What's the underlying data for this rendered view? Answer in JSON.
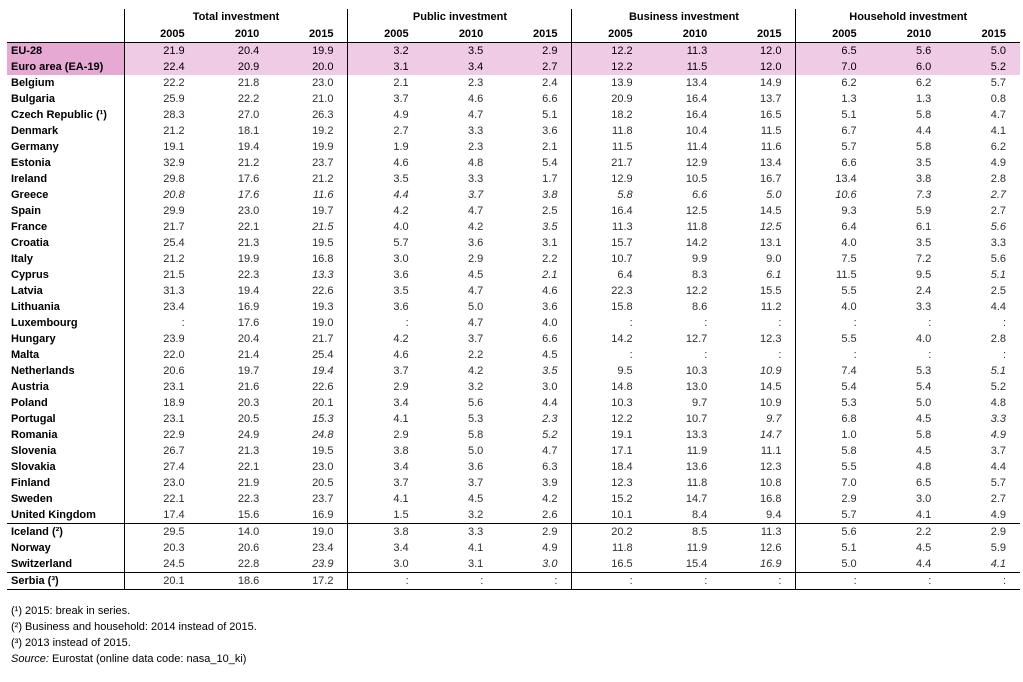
{
  "chart_data": {
    "type": "table",
    "groups": [
      "Total investment",
      "Public investment",
      "Business investment",
      "Household investment"
    ],
    "years": [
      "2005",
      "2010",
      "2015"
    ],
    "rows": [
      {
        "name": "EU-28",
        "values": [
          "21.9",
          "20.4",
          "19.9",
          "3.2",
          "3.5",
          "2.9",
          "12.2",
          "11.3",
          "12.0",
          "6.5",
          "5.6",
          "5.0"
        ]
      },
      {
        "name": "Euro area (EA-19)",
        "values": [
          "22.4",
          "20.9",
          "20.0",
          "3.1",
          "3.4",
          "2.7",
          "12.2",
          "11.5",
          "12.0",
          "7.0",
          "6.0",
          "5.2"
        ]
      },
      {
        "name": "Belgium",
        "values": [
          "22.2",
          "21.8",
          "23.0",
          "2.1",
          "2.3",
          "2.4",
          "13.9",
          "13.4",
          "14.9",
          "6.2",
          "6.2",
          "5.7"
        ]
      },
      {
        "name": "Bulgaria",
        "values": [
          "25.9",
          "22.2",
          "21.0",
          "3.7",
          "4.6",
          "6.6",
          "20.9",
          "16.4",
          "13.7",
          "1.3",
          "1.3",
          "0.8"
        ]
      },
      {
        "name": "Czech Republic (¹)",
        "values": [
          "28.3",
          "27.0",
          "26.3",
          "4.9",
          "4.7",
          "5.1",
          "18.2",
          "16.4",
          "16.5",
          "5.1",
          "5.8",
          "4.7"
        ]
      },
      {
        "name": "Denmark",
        "values": [
          "21.2",
          "18.1",
          "19.2",
          "2.7",
          "3.3",
          "3.6",
          "11.8",
          "10.4",
          "11.5",
          "6.7",
          "4.4",
          "4.1"
        ]
      },
      {
        "name": "Germany",
        "values": [
          "19.1",
          "19.4",
          "19.9",
          "1.9",
          "2.3",
          "2.1",
          "11.5",
          "11.4",
          "11.6",
          "5.7",
          "5.8",
          "6.2"
        ]
      },
      {
        "name": "Estonia",
        "values": [
          "32.9",
          "21.2",
          "23.7",
          "4.6",
          "4.8",
          "5.4",
          "21.7",
          "12.9",
          "13.4",
          "6.6",
          "3.5",
          "4.9"
        ]
      },
      {
        "name": "Ireland",
        "values": [
          "29.8",
          "17.6",
          "21.2",
          "3.5",
          "3.3",
          "1.7",
          "12.9",
          "10.5",
          "16.7",
          "13.4",
          "3.8",
          "2.8"
        ]
      },
      {
        "name": "Greece",
        "values": [
          "20.8",
          "17.6",
          "11.6",
          "4.4",
          "3.7",
          "3.8",
          "5.8",
          "6.6",
          "5.0",
          "10.6",
          "7.3",
          "2.7"
        ],
        "italic": [
          0,
          1,
          2,
          3,
          4,
          5,
          6,
          7,
          8,
          9,
          10,
          11
        ]
      },
      {
        "name": "Spain",
        "values": [
          "29.9",
          "23.0",
          "19.7",
          "4.2",
          "4.7",
          "2.5",
          "16.4",
          "12.5",
          "14.5",
          "9.3",
          "5.9",
          "2.7"
        ]
      },
      {
        "name": "France",
        "values": [
          "21.7",
          "22.1",
          "21.5",
          "4.0",
          "4.2",
          "3.5",
          "11.3",
          "11.8",
          "12.5",
          "6.4",
          "6.1",
          "5.6"
        ],
        "italic": [
          2,
          5,
          8,
          11
        ]
      },
      {
        "name": "Croatia",
        "values": [
          "25.4",
          "21.3",
          "19.5",
          "5.7",
          "3.6",
          "3.1",
          "15.7",
          "14.2",
          "13.1",
          "4.0",
          "3.5",
          "3.3"
        ]
      },
      {
        "name": "Italy",
        "values": [
          "21.2",
          "19.9",
          "16.8",
          "3.0",
          "2.9",
          "2.2",
          "10.7",
          "9.9",
          "9.0",
          "7.5",
          "7.2",
          "5.6"
        ]
      },
      {
        "name": "Cyprus",
        "values": [
          "21.5",
          "22.3",
          "13.3",
          "3.6",
          "4.5",
          "2.1",
          "6.4",
          "8.3",
          "6.1",
          "11.5",
          "9.5",
          "5.1"
        ],
        "italic": [
          2,
          5,
          8,
          11
        ]
      },
      {
        "name": "Latvia",
        "values": [
          "31.3",
          "19.4",
          "22.6",
          "3.5",
          "4.7",
          "4.6",
          "22.3",
          "12.2",
          "15.5",
          "5.5",
          "2.4",
          "2.5"
        ]
      },
      {
        "name": "Lithuania",
        "values": [
          "23.4",
          "16.9",
          "19.3",
          "3.6",
          "5.0",
          "3.6",
          "15.8",
          "8.6",
          "11.2",
          "4.0",
          "3.3",
          "4.4"
        ]
      },
      {
        "name": "Luxembourg",
        "values": [
          ":",
          "17.6",
          "19.0",
          ":",
          "4.7",
          "4.0",
          ":",
          ":",
          ":",
          ":",
          ":",
          ":"
        ]
      },
      {
        "name": "Hungary",
        "values": [
          "23.9",
          "20.4",
          "21.7",
          "4.2",
          "3.7",
          "6.6",
          "14.2",
          "12.7",
          "12.3",
          "5.5",
          "4.0",
          "2.8"
        ]
      },
      {
        "name": "Malta",
        "values": [
          "22.0",
          "21.4",
          "25.4",
          "4.6",
          "2.2",
          "4.5",
          ":",
          ":",
          ":",
          ":",
          ":",
          ":"
        ]
      },
      {
        "name": "Netherlands",
        "values": [
          "20.6",
          "19.7",
          "19.4",
          "3.7",
          "4.2",
          "3.5",
          "9.5",
          "10.3",
          "10.9",
          "7.4",
          "5.3",
          "5.1"
        ],
        "italic": [
          2,
          5,
          8,
          11
        ]
      },
      {
        "name": "Austria",
        "values": [
          "23.1",
          "21.6",
          "22.6",
          "2.9",
          "3.2",
          "3.0",
          "14.8",
          "13.0",
          "14.5",
          "5.4",
          "5.4",
          "5.2"
        ]
      },
      {
        "name": "Poland",
        "values": [
          "18.9",
          "20.3",
          "20.1",
          "3.4",
          "5.6",
          "4.4",
          "10.3",
          "9.7",
          "10.9",
          "5.3",
          "5.0",
          "4.8"
        ]
      },
      {
        "name": "Portugal",
        "values": [
          "23.1",
          "20.5",
          "15.3",
          "4.1",
          "5.3",
          "2.3",
          "12.2",
          "10.7",
          "9.7",
          "6.8",
          "4.5",
          "3.3"
        ],
        "italic": [
          2,
          5,
          8,
          11
        ]
      },
      {
        "name": "Romania",
        "values": [
          "22.9",
          "24.9",
          "24.8",
          "2.9",
          "5.8",
          "5.2",
          "19.1",
          "13.3",
          "14.7",
          "1.0",
          "5.8",
          "4.9"
        ],
        "italic": [
          2,
          5,
          8,
          11
        ]
      },
      {
        "name": "Slovenia",
        "values": [
          "26.7",
          "21.3",
          "19.5",
          "3.8",
          "5.0",
          "4.7",
          "17.1",
          "11.9",
          "11.1",
          "5.8",
          "4.5",
          "3.7"
        ]
      },
      {
        "name": "Slovakia",
        "values": [
          "27.4",
          "22.1",
          "23.0",
          "3.4",
          "3.6",
          "6.3",
          "18.4",
          "13.6",
          "12.3",
          "5.5",
          "4.8",
          "4.4"
        ]
      },
      {
        "name": "Finland",
        "values": [
          "23.0",
          "21.9",
          "20.5",
          "3.7",
          "3.7",
          "3.9",
          "12.3",
          "11.8",
          "10.8",
          "7.0",
          "6.5",
          "5.7"
        ]
      },
      {
        "name": "Sweden",
        "values": [
          "22.1",
          "22.3",
          "23.7",
          "4.1",
          "4.5",
          "4.2",
          "15.2",
          "14.7",
          "16.8",
          "2.9",
          "3.0",
          "2.7"
        ]
      },
      {
        "name": "United Kingdom",
        "values": [
          "17.4",
          "15.6",
          "16.9",
          "1.5",
          "3.2",
          "2.6",
          "10.1",
          "8.4",
          "9.4",
          "5.7",
          "4.1",
          "4.9"
        ]
      },
      {
        "name": "Iceland (²)",
        "values": [
          "29.5",
          "14.0",
          "19.0",
          "3.8",
          "3.3",
          "2.9",
          "20.2",
          "8.5",
          "11.3",
          "5.6",
          "2.2",
          "2.9"
        ]
      },
      {
        "name": "Norway",
        "values": [
          "20.3",
          "20.6",
          "23.4",
          "3.4",
          "4.1",
          "4.9",
          "11.8",
          "11.9",
          "12.6",
          "5.1",
          "4.5",
          "5.9"
        ]
      },
      {
        "name": "Switzerland",
        "values": [
          "24.5",
          "22.8",
          "23.9",
          "3.0",
          "3.1",
          "3.0",
          "16.5",
          "15.4",
          "16.9",
          "5.0",
          "4.4",
          "4.1"
        ],
        "italic": [
          2,
          5,
          8,
          11
        ]
      },
      {
        "name": "Serbia (³)",
        "values": [
          "20.1",
          "18.6",
          "17.2",
          ":",
          ":",
          ":",
          ":",
          ":",
          ":",
          ":",
          ":",
          ":"
        ]
      }
    ]
  },
  "notes": {
    "n1": "(¹) 2015: break in series.",
    "n2": "(²) Business and household: 2014 instead of 2015.",
    "n3": "(³) 2013 instead of 2015.",
    "source_label": "Source:",
    "source_text": "Eurostat (online data code: nasa_10_ki)"
  }
}
